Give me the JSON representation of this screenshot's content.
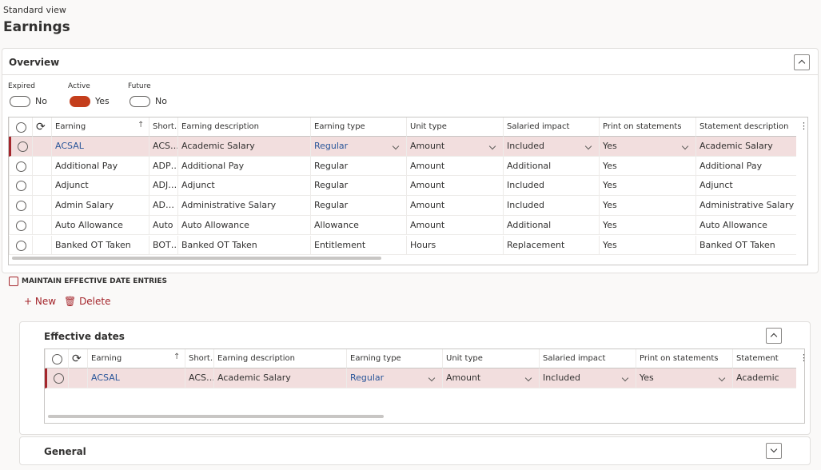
{
  "header": {
    "view": "Standard view",
    "title": "Earnings"
  },
  "overview": {
    "title": "Overview",
    "filters": [
      {
        "label": "Expired",
        "value": "No"
      },
      {
        "label": "Active",
        "value": "Yes"
      },
      {
        "label": "Future",
        "value": "No"
      }
    ],
    "grid": {
      "columns": [
        "Earning",
        "Short…",
        "Earning description",
        "Earning type",
        "Unit type",
        "Salaried impact",
        "Print on statements",
        "Statement description"
      ],
      "rows": [
        [
          "ACSAL",
          "ACS…",
          "Academic Salary",
          "Regular",
          "Amount",
          "Included",
          "Yes",
          "Academic Salary"
        ],
        [
          "Additional Pay",
          "ADP…",
          "Additional Pay",
          "Regular",
          "Amount",
          "Additional",
          "Yes",
          "Additional Pay"
        ],
        [
          "Adjunct",
          "ADJ…",
          "Adjunct",
          "Regular",
          "Amount",
          "Included",
          "Yes",
          "Adjunct"
        ],
        [
          "Admin Salary",
          "AD…",
          "Administrative Salary",
          "Regular",
          "Amount",
          "Included",
          "Yes",
          "Administrative Salary"
        ],
        [
          "Auto Allowance",
          "Auto",
          "Auto Allowance",
          "Allowance",
          "Amount",
          "Additional",
          "Yes",
          "Auto Allowance"
        ],
        [
          "Banked OT Taken",
          "BOT…",
          "Banked OT Taken",
          "Entitlement",
          "Hours",
          "Replacement",
          "Yes",
          "Banked OT Taken"
        ]
      ]
    }
  },
  "maintain": {
    "title": "MAINTAIN EFFECTIVE DATE ENTRIES",
    "actions": [
      "New",
      "Delete"
    ]
  },
  "effective_dates": {
    "title": "Effective dates",
    "grid": {
      "columns": [
        "Earning",
        "Short…",
        "Earning description",
        "Earning type",
        "Unit type",
        "Salaried impact",
        "Print on statements",
        "Statement descrip"
      ],
      "rows": [
        [
          "ACSAL",
          "ACS…",
          "Academic Salary",
          "Regular",
          "Amount",
          "Included",
          "Yes",
          "Academic Salary"
        ]
      ]
    }
  },
  "general": {
    "title": "General"
  }
}
